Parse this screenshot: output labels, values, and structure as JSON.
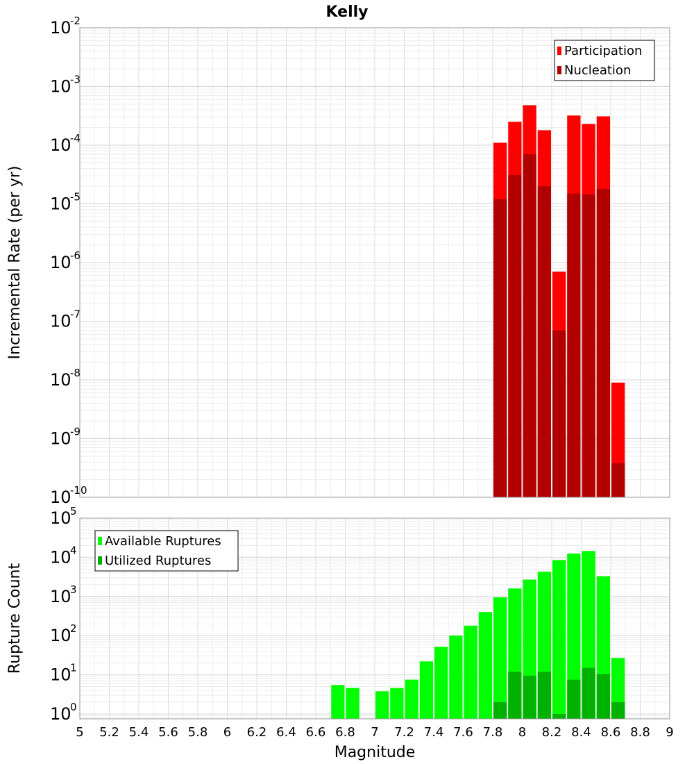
{
  "chart_data": [
    {
      "type": "bar",
      "title": "Kelly",
      "xlabel": "",
      "ylabel": "Incremental Rate (per yr)",
      "yscale": "log",
      "ylim": [
        1e-10,
        0.01
      ],
      "xlim": [
        5,
        9
      ],
      "bin_width": 0.1,
      "legend": "top-right",
      "grid": true,
      "series": [
        {
          "name": "Participation",
          "color": "#ff0000",
          "x": [
            7.85,
            7.95,
            8.05,
            8.15,
            8.25,
            8.35,
            8.45,
            8.55,
            8.65
          ],
          "values": [
            0.00011,
            0.00025,
            0.00048,
            0.00018,
            7e-07,
            0.00032,
            0.00023,
            0.00031,
            9e-09
          ]
        },
        {
          "name": "Nucleation",
          "color": "#b20000",
          "x": [
            7.85,
            7.95,
            8.05,
            8.15,
            8.25,
            8.35,
            8.45,
            8.55,
            8.65
          ],
          "values": [
            1.2e-05,
            3.1e-05,
            7e-05,
            2e-05,
            7e-08,
            1.5e-05,
            1.45e-05,
            1.8e-05,
            3.8e-10
          ]
        }
      ]
    },
    {
      "type": "bar",
      "title": "",
      "xlabel": "Magnitude",
      "ylabel": "Rupture Count",
      "yscale": "log",
      "ylim": [
        0.75,
        100000.0
      ],
      "xlim": [
        5,
        9
      ],
      "bin_width": 0.1,
      "legend": "top-left",
      "grid": true,
      "x_ticks": [
        "5",
        "5.2",
        "5.4",
        "5.6",
        "5.8",
        "6",
        "6.2",
        "6.4",
        "6.6",
        "6.8",
        "7",
        "7.2",
        "7.4",
        "7.6",
        "7.8",
        "8",
        "8.2",
        "8.4",
        "8.6",
        "8.8",
        "9"
      ],
      "series": [
        {
          "name": "Available Ruptures",
          "color": "#00ff00",
          "x": [
            6.75,
            6.85,
            7.05,
            7.15,
            7.25,
            7.35,
            7.45,
            7.55,
            7.65,
            7.75,
            7.85,
            7.95,
            8.05,
            8.15,
            8.25,
            8.35,
            8.45,
            8.55,
            8.65
          ],
          "values": [
            5.5,
            4.6,
            3.8,
            4.6,
            7.5,
            22,
            52,
            100,
            180,
            400,
            950,
            1600,
            2700,
            4300,
            8500,
            12500,
            14500,
            3300,
            27
          ]
        },
        {
          "name": "Utilized Ruptures",
          "color": "#00b200",
          "x": [
            7.85,
            7.95,
            8.05,
            8.15,
            8.25,
            8.35,
            8.45,
            8.55,
            8.65
          ],
          "values": [
            2,
            12,
            9.5,
            12,
            1,
            7.5,
            15,
            10.5,
            2
          ]
        }
      ]
    }
  ]
}
